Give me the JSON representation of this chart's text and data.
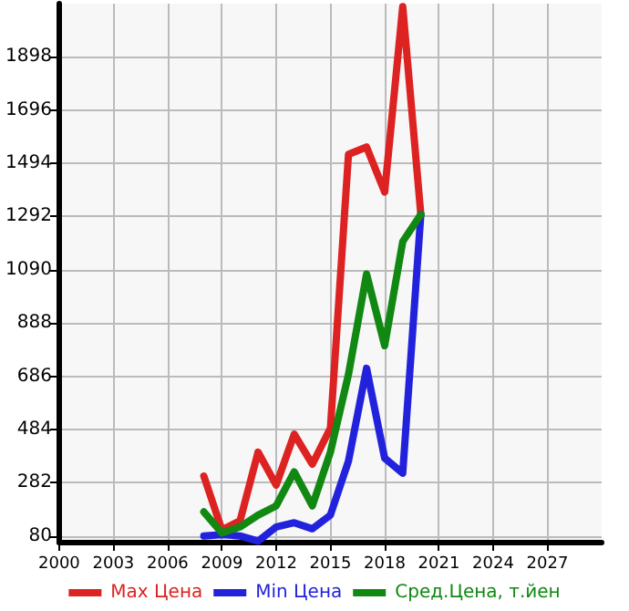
{
  "chart_data": {
    "type": "line",
    "x": [
      2008,
      2009,
      2010,
      2011,
      2012,
      2013,
      2014,
      2015,
      2016,
      2017,
      2018,
      2019,
      2020
    ],
    "series": [
      {
        "name": "Max Цена",
        "color": "#dd2222",
        "values": [
          307,
          103,
          137,
          398,
          273,
          466,
          352,
          489,
          1528,
          1556,
          1385,
          2089,
          1300
        ]
      },
      {
        "name": "Min Цена",
        "color": "#2222dd",
        "values": [
          80,
          85,
          80,
          60,
          114,
          130,
          107,
          159,
          364,
          716,
          375,
          318,
          1300
        ]
      },
      {
        "name": "Сред.Цена, т.йен",
        "color": "#118811",
        "values": [
          171,
          91,
          114,
          159,
          194,
          323,
          194,
          398,
          693,
          1074,
          802,
          1197,
          1300
        ]
      }
    ],
    "xlim": [
      2000,
      2030
    ],
    "xticks": [
      2000,
      2003,
      2006,
      2009,
      2012,
      2015,
      2018,
      2021,
      2024,
      2027
    ],
    "ylim": [
      58,
      2100
    ],
    "yticks": [
      80,
      282,
      484,
      686,
      888,
      1090,
      1292,
      1494,
      1696,
      1898
    ],
    "grid": true,
    "legend": "bottom",
    "marker": "none",
    "line_style": "solid"
  }
}
